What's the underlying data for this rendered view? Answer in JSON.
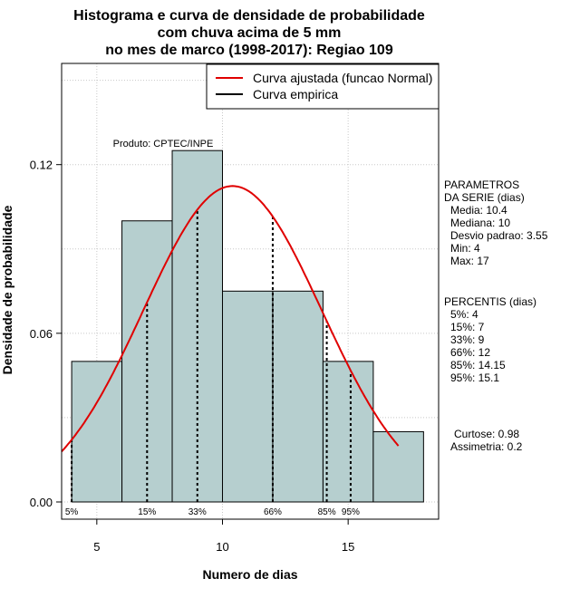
{
  "chart_data": {
    "type": "bar",
    "title_lines": [
      "Histograma e curva de densidade de probabilidade",
      "com chuva acima de 5 mm",
      "no mes de marco (1998-2017): Regiao 109"
    ],
    "xlabel": "Numero de dias",
    "ylabel": "Densidade de probabilidade",
    "xlim": [
      3.6,
      18.6
    ],
    "ylim": [
      0,
      0.156
    ],
    "x_ticks": [
      5,
      10,
      15
    ],
    "x_tick_labels": [
      "5",
      "10",
      "15"
    ],
    "y_ticks": [
      0.0,
      0.06,
      0.12
    ],
    "y_tick_labels": [
      "0.00",
      "0.06",
      "0.12"
    ],
    "bins": [
      {
        "start": 4,
        "end": 6,
        "density": 0.05
      },
      {
        "start": 6,
        "end": 8,
        "density": 0.1
      },
      {
        "start": 8,
        "end": 10,
        "density": 0.125
      },
      {
        "start": 10,
        "end": 12,
        "density": 0.075
      },
      {
        "start": 12,
        "end": 14,
        "density": 0.075
      },
      {
        "start": 14,
        "end": 16,
        "density": 0.05
      },
      {
        "start": 16,
        "end": 18,
        "density": 0.025
      }
    ],
    "bar_color": "#b6cfcf",
    "curve_color": "#e00000",
    "normal_curve": {
      "mean": 10.4,
      "sd": 3.55,
      "x_start": 3.6,
      "x_end": 17
    },
    "legend": [
      "Curva ajustada (funcao Normal)",
      "Curva empirica"
    ],
    "legend_position": "top-right",
    "grid": true,
    "annotation": "Produto: CPTEC/INPE",
    "percentiles": [
      {
        "label": "5%",
        "x": 4
      },
      {
        "label": "15%",
        "x": 7
      },
      {
        "label": "33%",
        "x": 9
      },
      {
        "label": "66%",
        "x": 12
      },
      {
        "label": "85%",
        "x": 14.15
      },
      {
        "label": "95%",
        "x": 15.1
      }
    ],
    "params_title": [
      "PARAMETROS",
      "DA SERIE (dias)"
    ],
    "params": [
      "Media: 10.4",
      "Mediana: 10",
      "Desvio padrao: 3.55",
      "Min: 4",
      "Max: 17"
    ],
    "percentis_title": "PERCENTIS (dias)",
    "percentis_list": [
      "5%: 4",
      "15%: 7",
      "33%: 9",
      "66%: 12",
      "85%: 14.15",
      "95%: 15.1"
    ],
    "curtose": "Curtose: 0.98",
    "assimetria": "Assimetria: 0.2"
  }
}
